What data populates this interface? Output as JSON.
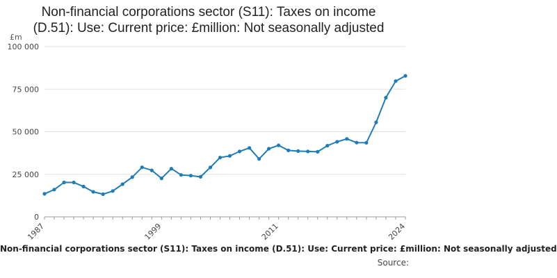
{
  "chart_data": {
    "type": "line",
    "title_line1": "Non-financial corporations sector (S11): Taxes on income",
    "title_line2": "(D.51): Use: Current price: £million: Not seasonally adjusted",
    "unit_label": "£m",
    "x_tick_labels": [
      "1987",
      "1999",
      "2011",
      "2024"
    ],
    "y_tick_labels": [
      "0",
      "25 000",
      "50 000",
      "75 000",
      "100 000"
    ],
    "y_ticks": [
      0,
      25000,
      50000,
      75000,
      100000
    ],
    "ylim": [
      0,
      100000
    ],
    "xlim": [
      1987,
      2024
    ],
    "grid": true,
    "line_color": "#1f7cb8",
    "x": [
      1987,
      1988,
      1989,
      1990,
      1991,
      1992,
      1993,
      1994,
      1995,
      1996,
      1997,
      1998,
      1999,
      2000,
      2001,
      2002,
      2003,
      2004,
      2005,
      2006,
      2007,
      2008,
      2009,
      2010,
      2011,
      2012,
      2013,
      2014,
      2015,
      2016,
      2017,
      2018,
      2019,
      2020,
      2021,
      2022,
      2023,
      2024
    ],
    "series": [
      {
        "name": "Non-financial corporations sector (S11): Taxes on income (D.51): Use: Current price: £million: Not seasonally adjusted",
        "values": [
          13500,
          16000,
          20200,
          20200,
          17800,
          14700,
          13300,
          15200,
          19200,
          23300,
          29100,
          27300,
          22600,
          28300,
          24600,
          24200,
          23500,
          29000,
          34800,
          35800,
          38400,
          40500,
          34000,
          40000,
          42000,
          39000,
          38600,
          38400,
          38200,
          41800,
          44100,
          45800,
          43600,
          43500,
          55500,
          70000,
          79700,
          82800
        ]
      }
    ],
    "legend_text": "Non-financial corporations sector (S11): Taxes on income (D.51): Use: Current price: £million: Not seasonally adjusted",
    "source_label": "Source:"
  }
}
